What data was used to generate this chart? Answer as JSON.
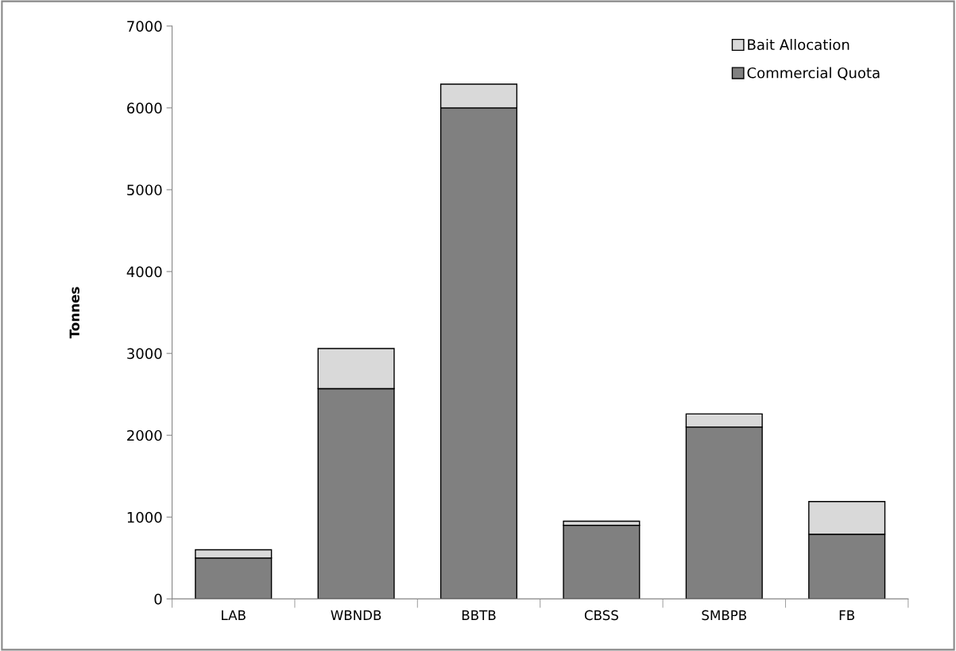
{
  "chart_data": {
    "type": "bar",
    "stacked": true,
    "ylabel": "Tonnes",
    "categories": [
      "LAB",
      "WBNDB",
      "BBTB",
      "CBSS",
      "SMBPB",
      "FB"
    ],
    "series": [
      {
        "name": "Commercial Quota",
        "color": "#808080",
        "values": [
          500,
          2570,
          6000,
          900,
          2100,
          790
        ]
      },
      {
        "name": "Bait Allocation",
        "color": "#d9d9d9",
        "values": [
          100,
          490,
          290,
          50,
          160,
          400
        ]
      }
    ],
    "ylim": [
      0,
      7000
    ],
    "yticks": [
      0,
      1000,
      2000,
      3000,
      4000,
      5000,
      6000,
      7000
    ],
    "grid": false,
    "legend": "top right"
  }
}
